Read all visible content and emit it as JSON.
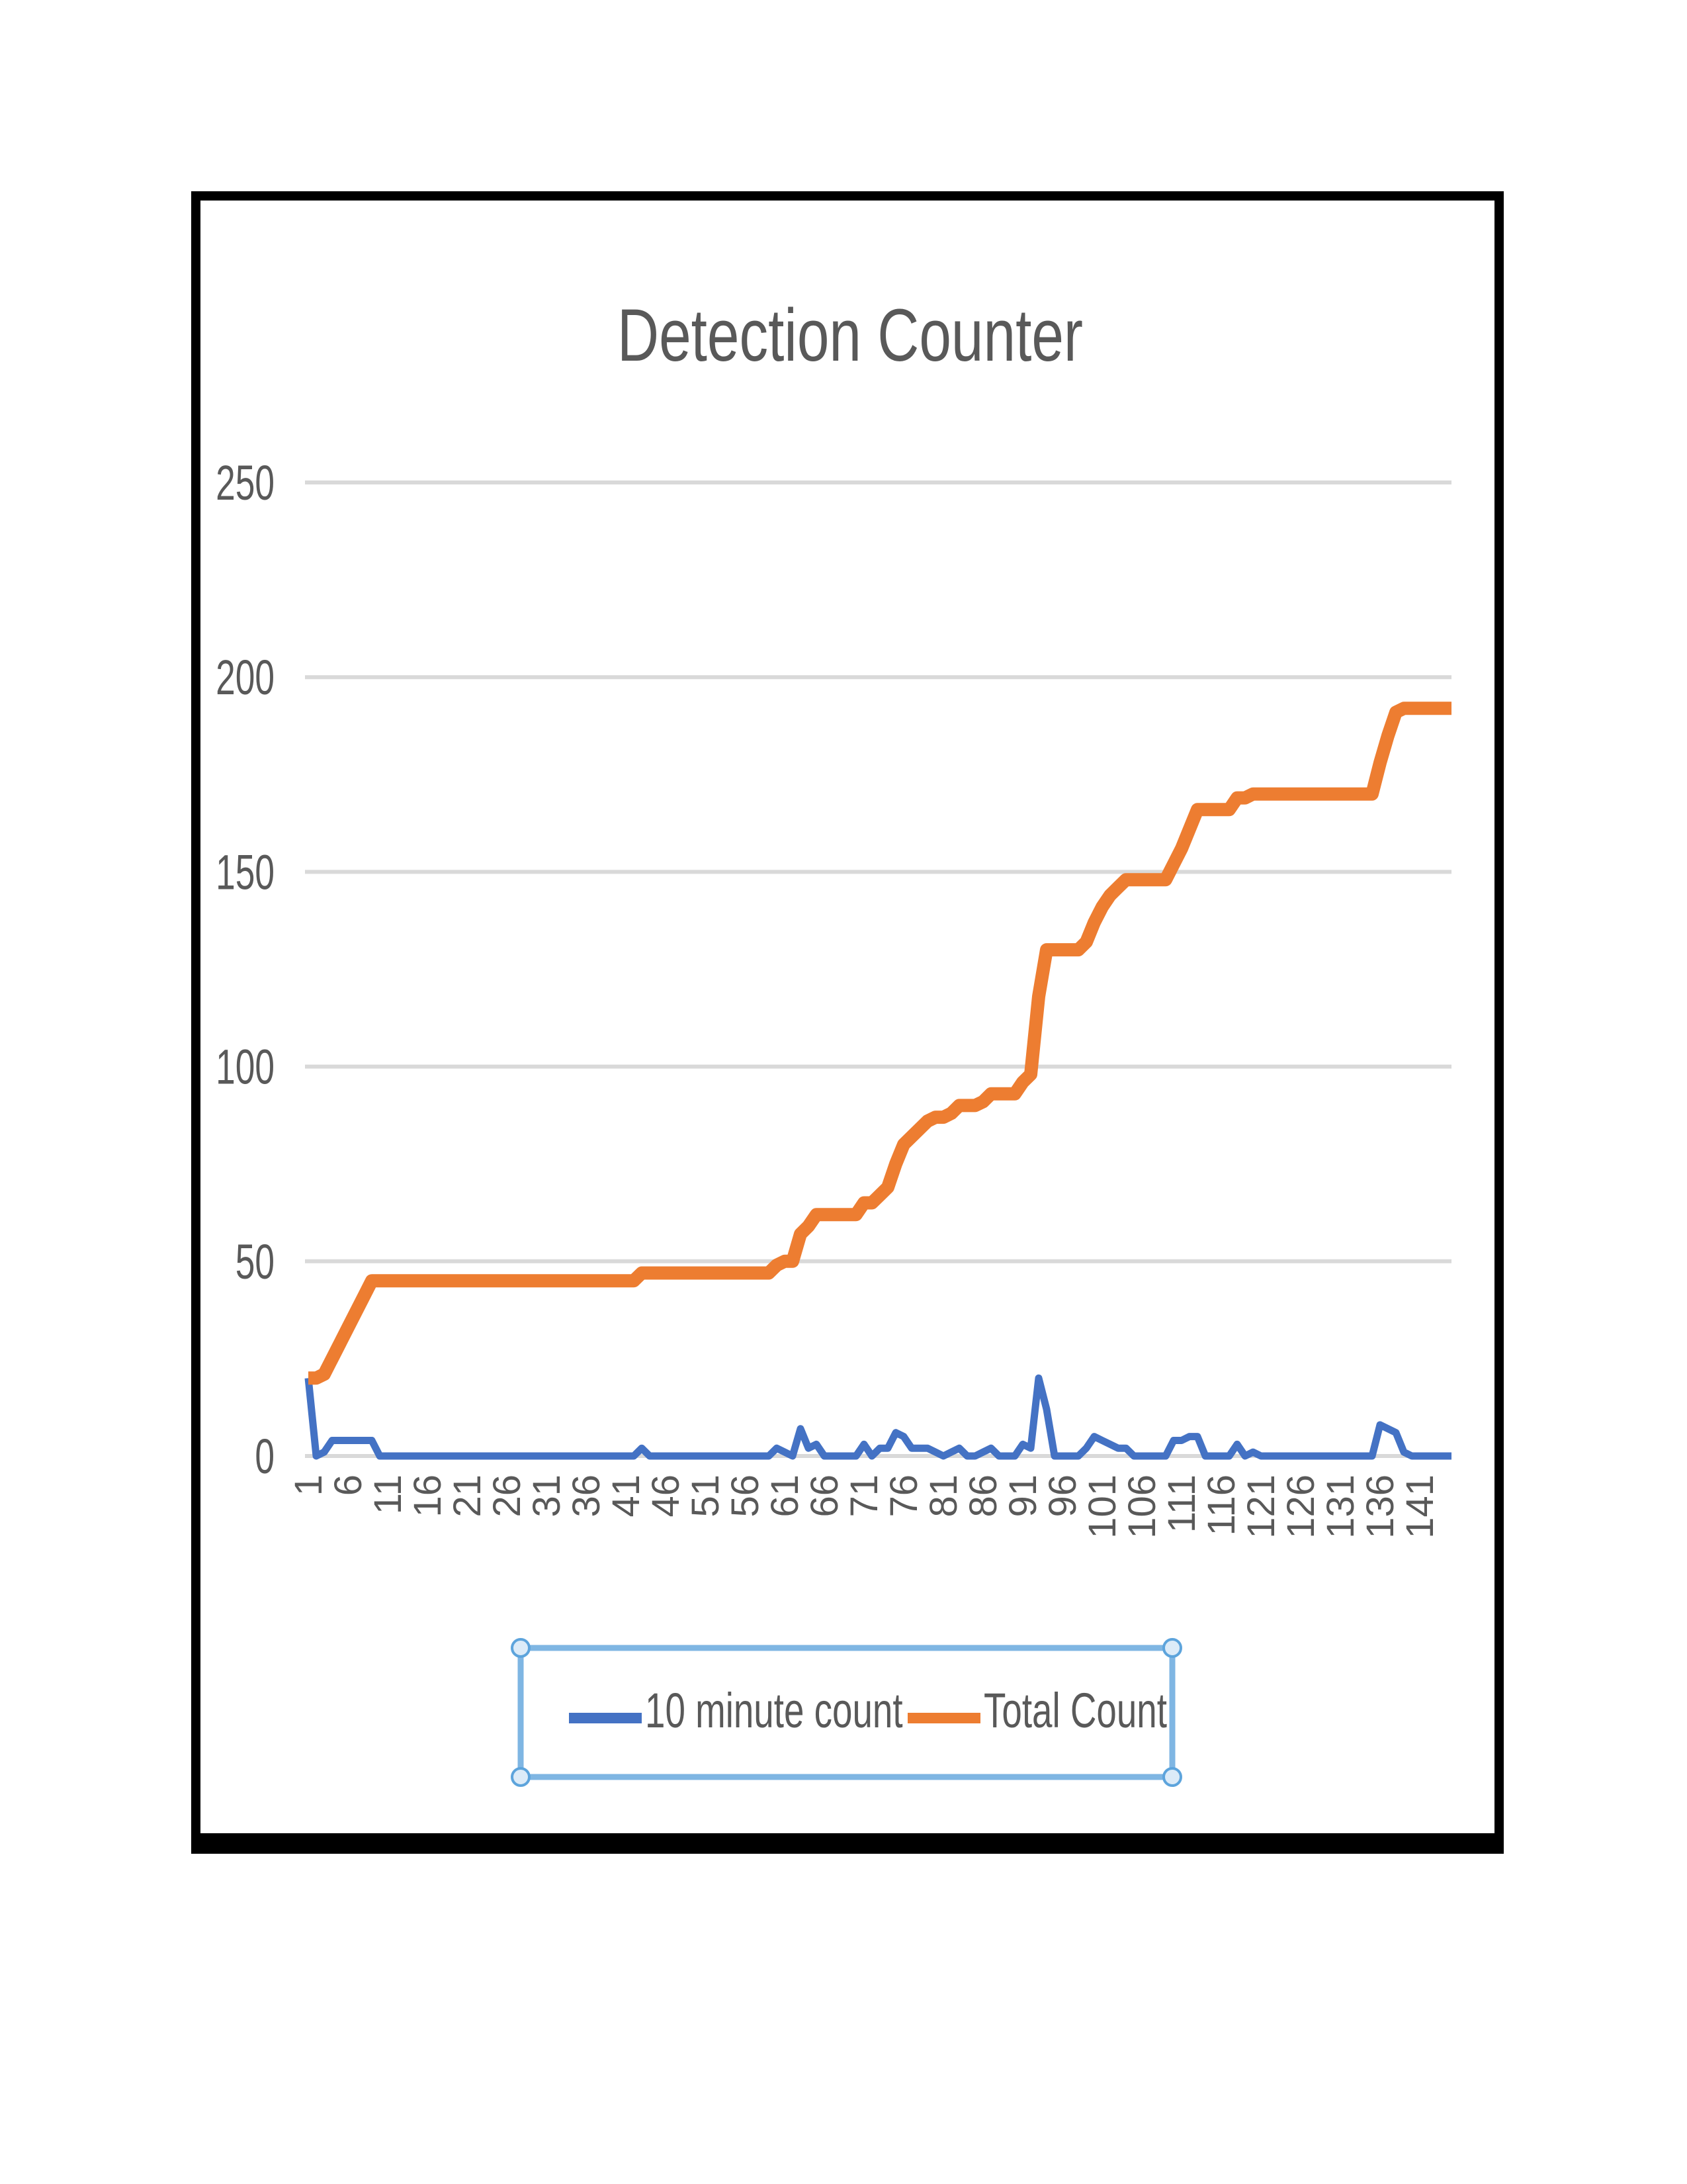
{
  "chart_data": {
    "type": "line",
    "title": "Detection Counter",
    "xlabel": "",
    "ylabel": "",
    "ylim": [
      0,
      250
    ],
    "yticks": [
      0,
      50,
      100,
      150,
      200,
      250
    ],
    "grid": true,
    "legend_position": "bottom",
    "x_start": 1,
    "x_end": 145,
    "x_tick_labels": [
      "1",
      "6",
      "11",
      "16",
      "21",
      "26",
      "31",
      "36",
      "41",
      "46",
      "51",
      "56",
      "61",
      "66",
      "71",
      "76",
      "81",
      "86",
      "91",
      "96",
      "101",
      "106",
      "111",
      "116",
      "121",
      "126",
      "131",
      "136",
      "141"
    ],
    "series": [
      {
        "name": "10 minute count",
        "color": "#4472C4",
        "values": [
          20,
          0,
          1,
          4,
          4,
          4,
          4,
          4,
          4,
          0,
          0,
          0,
          0,
          0,
          0,
          0,
          0,
          0,
          0,
          0,
          0,
          0,
          0,
          0,
          0,
          0,
          0,
          0,
          0,
          0,
          0,
          0,
          0,
          0,
          0,
          0,
          0,
          0,
          0,
          0,
          0,
          0,
          2,
          0,
          0,
          0,
          0,
          0,
          0,
          0,
          0,
          0,
          0,
          0,
          0,
          0,
          0,
          0,
          0,
          2,
          1,
          0,
          7,
          2,
          3,
          0,
          0,
          0,
          0,
          0,
          3,
          0,
          2,
          2,
          6,
          5,
          2,
          2,
          2,
          1,
          0,
          1,
          2,
          0,
          0,
          1,
          2,
          0,
          0,
          0,
          3,
          2,
          20,
          12,
          0,
          0,
          0,
          0,
          2,
          5,
          4,
          3,
          2,
          2,
          0,
          0,
          0,
          0,
          0,
          4,
          4,
          5,
          5,
          0,
          0,
          0,
          0,
          3,
          0,
          1,
          0,
          0,
          0,
          0,
          0,
          0,
          0,
          0,
          0,
          0,
          0,
          0,
          0,
          0,
          0,
          8,
          7,
          6,
          1,
          0,
          0,
          0,
          0,
          0,
          0
        ]
      },
      {
        "name": "Total Count",
        "color": "#ED7D31",
        "values": [
          20,
          20,
          21,
          25,
          29,
          33,
          37,
          41,
          45,
          45,
          45,
          45,
          45,
          45,
          45,
          45,
          45,
          45,
          45,
          45,
          45,
          45,
          45,
          45,
          45,
          45,
          45,
          45,
          45,
          45,
          45,
          45,
          45,
          45,
          45,
          45,
          45,
          45,
          45,
          45,
          45,
          45,
          47,
          47,
          47,
          47,
          47,
          47,
          47,
          47,
          47,
          47,
          47,
          47,
          47,
          47,
          47,
          47,
          47,
          49,
          50,
          50,
          57,
          59,
          62,
          62,
          62,
          62,
          62,
          62,
          65,
          65,
          67,
          69,
          75,
          80,
          82,
          84,
          86,
          87,
          87,
          88,
          90,
          90,
          90,
          91,
          93,
          93,
          93,
          93,
          96,
          98,
          118,
          130,
          130,
          130,
          130,
          130,
          132,
          137,
          141,
          144,
          146,
          148,
          148,
          148,
          148,
          148,
          148,
          152,
          156,
          161,
          166,
          166,
          166,
          166,
          166,
          169,
          169,
          170,
          170,
          170,
          170,
          170,
          170,
          170,
          170,
          170,
          170,
          170,
          170,
          170,
          170,
          170,
          170,
          178,
          185,
          191,
          192,
          192,
          192,
          192,
          192,
          192,
          192
        ]
      }
    ]
  }
}
